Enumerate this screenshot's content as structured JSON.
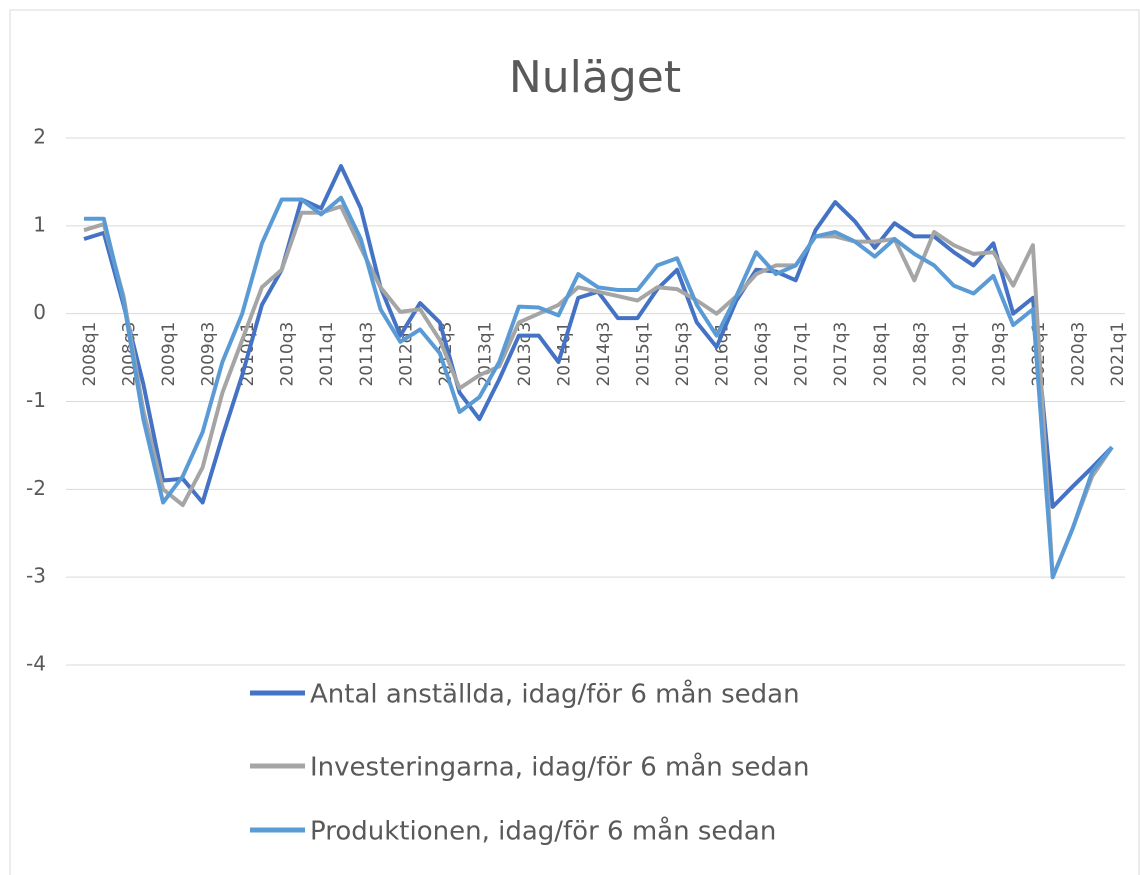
{
  "chart_data": {
    "type": "line",
    "title": "Nuläget",
    "categories": [
      "2008q1",
      null,
      "2008q3",
      null,
      "2009q1",
      null,
      "2009q3",
      null,
      "2010q1",
      null,
      "2010q3",
      null,
      "2011q1",
      null,
      "2011q3",
      null,
      "2012q1",
      null,
      "2012q3",
      null,
      "2013q1",
      null,
      "2013q3",
      null,
      "2014q1",
      null,
      "2014q3",
      null,
      "2015q1",
      null,
      "2015q3",
      null,
      "2016q1",
      null,
      "2016q3",
      null,
      "2017q1",
      null,
      "2017q3",
      null,
      "2018q1",
      null,
      "2018q3",
      null,
      "2019q1",
      null,
      "2019q3",
      null,
      "2020q1",
      null,
      "2020q3",
      null,
      "2021q1"
    ],
    "series": [
      {
        "name": "Antal anställda, idag/för 6 mån sedan",
        "color": "#4472c4",
        "values": [
          0.85,
          0.92,
          0.1,
          -0.8,
          -1.9,
          -1.88,
          -2.15,
          -1.4,
          -0.7,
          0.1,
          0.5,
          1.3,
          1.2,
          1.68,
          1.2,
          0.3,
          -0.25,
          0.12,
          -0.1,
          -0.9,
          -1.2,
          -0.75,
          -0.25,
          -0.25,
          -0.55,
          0.18,
          0.25,
          -0.05,
          -0.05,
          0.28,
          0.5,
          -0.1,
          -0.38,
          0.15,
          0.5,
          0.48,
          0.38,
          0.95,
          1.27,
          1.05,
          0.75,
          1.03,
          0.88,
          0.88,
          0.7,
          0.55,
          0.8,
          0.0,
          0.18,
          -2.2,
          -1.97,
          -1.75,
          -1.52
        ]
      },
      {
        "name": "Investeringarna, idag/för 6 mån sedan",
        "color": "#a5a5a5",
        "values": [
          0.95,
          1.02,
          0.2,
          -1.1,
          -2.0,
          -2.18,
          -1.75,
          -0.9,
          -0.3,
          0.3,
          0.5,
          1.15,
          1.15,
          1.22,
          0.75,
          0.3,
          0.02,
          0.05,
          -0.3,
          -0.85,
          -0.7,
          -0.6,
          -0.1,
          0.0,
          0.1,
          0.3,
          0.25,
          0.2,
          0.15,
          0.3,
          0.28,
          0.15,
          0.0,
          0.2,
          0.45,
          0.55,
          0.55,
          0.88,
          0.88,
          0.82,
          0.82,
          0.85,
          0.38,
          0.93,
          0.78,
          0.68,
          0.7,
          0.32,
          0.78,
          -3.0,
          -2.45,
          -1.85,
          -1.52
        ]
      },
      {
        "name": "Produktionen, idag/för 6 mån sedan",
        "color": "#5b9bd5",
        "values": [
          1.08,
          1.08,
          0.15,
          -1.2,
          -2.15,
          -1.85,
          -1.35,
          -0.55,
          0.0,
          0.8,
          1.3,
          1.3,
          1.13,
          1.32,
          0.85,
          0.05,
          -0.32,
          -0.18,
          -0.45,
          -1.12,
          -0.95,
          -0.55,
          0.08,
          0.07,
          -0.02,
          0.45,
          0.3,
          0.27,
          0.27,
          0.55,
          0.63,
          0.1,
          -0.25,
          0.2,
          0.7,
          0.45,
          0.55,
          0.88,
          0.93,
          0.82,
          0.65,
          0.85,
          0.68,
          0.55,
          0.32,
          0.23,
          0.43,
          -0.13,
          0.05,
          -3.0,
          -2.45,
          -1.8,
          -1.52
        ]
      }
    ],
    "ylim": [
      -4,
      2
    ],
    "yticks": [
      -4,
      -3,
      -2,
      -1,
      0,
      1,
      2
    ],
    "grid": true,
    "legend": "bottom"
  }
}
